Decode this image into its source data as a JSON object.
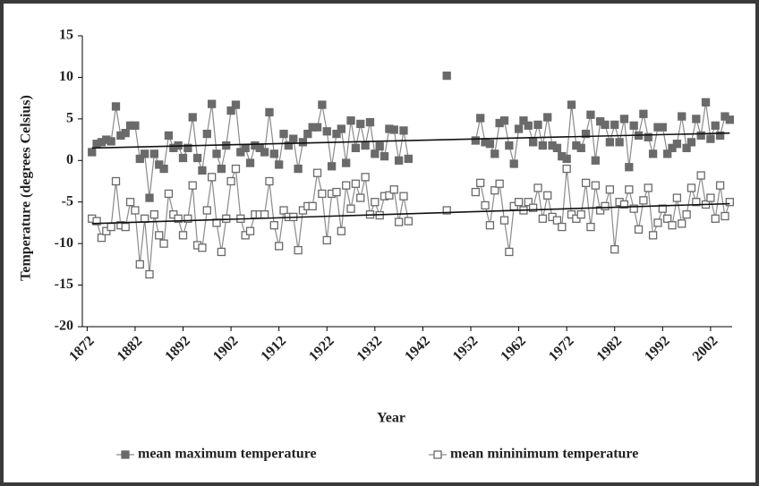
{
  "chart_data": {
    "type": "line",
    "xlabel": "Year",
    "ylabel": "Temperature (degrees Celsius)",
    "xlim": [
      1871,
      2006.5
    ],
    "ylim": [
      -20,
      15
    ],
    "xticks": [
      1872,
      1882,
      1892,
      1902,
      1912,
      1922,
      1932,
      1942,
      1952,
      1962,
      1972,
      1982,
      1992,
      2002
    ],
    "yticks": [
      -20,
      -15,
      -10,
      -5,
      0,
      5,
      10,
      15
    ],
    "x": [
      1873,
      1874,
      1875,
      1876,
      1877,
      1878,
      1879,
      1880,
      1881,
      1882,
      1883,
      1884,
      1885,
      1886,
      1887,
      1888,
      1889,
      1890,
      1891,
      1892,
      1893,
      1894,
      1895,
      1896,
      1897,
      1898,
      1899,
      1900,
      1901,
      1902,
      1903,
      1904,
      1905,
      1906,
      1907,
      1908,
      1909,
      1910,
      1911,
      1912,
      1913,
      1914,
      1915,
      1916,
      1917,
      1918,
      1919,
      1920,
      1921,
      1922,
      1923,
      1924,
      1925,
      1926,
      1927,
      1928,
      1929,
      1930,
      1931,
      1932,
      1933,
      1934,
      1935,
      1936,
      1937,
      1938,
      1939,
      1940,
      1941,
      1942,
      1943,
      1944,
      1945,
      1946,
      1947,
      1948,
      1949,
      1950,
      1951,
      1952,
      1953,
      1954,
      1955,
      1956,
      1957,
      1958,
      1959,
      1960,
      1961,
      1962,
      1963,
      1964,
      1965,
      1966,
      1967,
      1968,
      1969,
      1970,
      1971,
      1972,
      1973,
      1974,
      1975,
      1976,
      1977,
      1978,
      1979,
      1980,
      1981,
      1982,
      1983,
      1984,
      1985,
      1986,
      1987,
      1988,
      1989,
      1990,
      1991,
      1992,
      1993,
      1994,
      1995,
      1996,
      1997,
      1998,
      1999,
      2000,
      2001,
      2002,
      2003,
      2004,
      2005,
      2006
    ],
    "series": [
      {
        "name": "mean maximum temperature",
        "color": "#6a6a6a",
        "marker": "filled",
        "values": [
          1,
          2,
          2.2,
          2.5,
          2.3,
          6.5,
          3,
          3.3,
          4.2,
          4.2,
          0.2,
          0.8,
          -4.5,
          0.8,
          -0.5,
          -1,
          3,
          1.5,
          1.8,
          0.3,
          1.5,
          5.2,
          0.3,
          -1.2,
          3.2,
          6.8,
          0.8,
          -1,
          1.8,
          6,
          6.7,
          1,
          1.5,
          -0.3,
          1.8,
          1.5,
          1,
          5.8,
          0.8,
          -0.5,
          3.2,
          1.8,
          2.6,
          -1,
          2.2,
          3.2,
          4,
          4,
          6.7,
          3.5,
          -0.7,
          3.2,
          3.8,
          -0.3,
          4.8,
          1.5,
          4.4,
          1.8,
          4.6,
          0.8,
          1.7,
          0.5,
          3.8,
          3.7,
          0,
          3.6,
          0.2,
          null,
          null,
          null,
          null,
          null,
          null,
          null,
          10.2,
          null,
          null,
          null,
          null,
          null,
          2.4,
          5.1,
          2.2,
          2,
          0.8,
          4.5,
          4.8,
          1.8,
          -0.4,
          3.8,
          4.8,
          4.2,
          2.2,
          4.3,
          1.8,
          5.2,
          1.8,
          1.5,
          0.5,
          0.2,
          6.7,
          1.8,
          1.5,
          3.2,
          5.5,
          0,
          4.7,
          4.3,
          2.2,
          4.3,
          2.2,
          5,
          -0.8,
          4.2,
          3,
          5.6,
          2.8,
          0.8,
          4,
          4,
          0.8,
          1.5,
          2,
          5.3,
          1.5,
          2.2,
          5,
          3,
          7,
          2.6,
          4.2,
          3,
          5.3,
          4.9
        ],
        "trend": {
          "x": [
            1873,
            2006
          ],
          "values": [
            1.5,
            3.3
          ]
        }
      },
      {
        "name": "mean mininimum temperature",
        "color": "#6a6a6a",
        "marker": "hollow",
        "values": [
          -7,
          -7.3,
          -9.3,
          -8.5,
          -8,
          -2.5,
          -7.8,
          -8,
          -5,
          -6,
          -12.5,
          -7,
          -13.7,
          -6.5,
          -9,
          -10,
          -4,
          -6.5,
          -7,
          -9,
          -7,
          -3,
          -10.2,
          -10.5,
          -6,
          -2,
          -7.5,
          -11,
          -7,
          -2.5,
          -1,
          -7,
          -9,
          -8.5,
          -6.5,
          -6.5,
          -6.5,
          -2.5,
          -7.8,
          -10.3,
          -6,
          -6.8,
          -6.8,
          -10.8,
          -6,
          -5.5,
          -5.5,
          -1.5,
          -4,
          -9.6,
          -4,
          -3.8,
          -8.5,
          -3,
          -5.8,
          -2.8,
          -4.5,
          -2,
          -6.5,
          -5,
          -6.6,
          -4.3,
          -4.2,
          -3.5,
          -7.4,
          -4.3,
          -7.3,
          null,
          null,
          null,
          null,
          null,
          null,
          null,
          -6,
          null,
          null,
          null,
          null,
          null,
          -3.8,
          -2.7,
          -5.4,
          -7.8,
          -3.6,
          -2.8,
          -7.2,
          -11,
          -5.5,
          -5,
          -6,
          -5,
          -5.7,
          -3.3,
          -7,
          -4.2,
          -6.8,
          -7.2,
          -8,
          -1,
          -6.5,
          -7,
          -6.5,
          -2.7,
          -8,
          -3,
          -6,
          -5.5,
          -3.5,
          -10.7,
          -5,
          -5.3,
          -3.5,
          -5.8,
          -8.3,
          -4.8,
          -3.3,
          -9,
          -7.5,
          -5.8,
          -7,
          -7.8,
          -4.5,
          -7.6,
          -6.5,
          -3.3,
          -5,
          -1.8,
          -5.3,
          -4.5,
          -7,
          -3,
          -6.7,
          -5
        ],
        "trend": {
          "x": [
            1873,
            2006
          ],
          "values": [
            -7.6,
            -5.2
          ]
        }
      }
    ]
  }
}
